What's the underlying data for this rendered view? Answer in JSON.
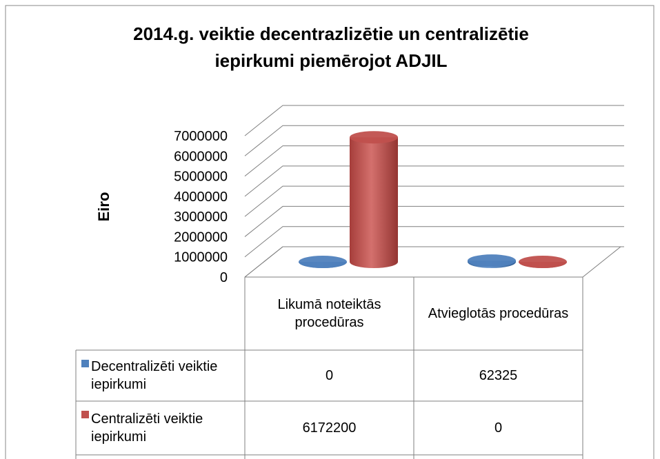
{
  "chart_data": {
    "type": "bar3d",
    "title": "2014.g. veiktie decentrazlizētie un centralizētie iepirkumi piemērojot ADJIL",
    "y_label": "Eiro",
    "categories": [
      "Likumā noteiktās procedūras",
      "Atvieglotās procedūras"
    ],
    "series": [
      {
        "name": "Decentralizēti veiktie iepirkumi",
        "color": "#4f81bd",
        "values": [
          0,
          62325
        ]
      },
      {
        "name": "Centralizēti veiktie iepirkumi",
        "color": "#c0504d",
        "values": [
          6172200,
          0
        ]
      }
    ],
    "ylim": [
      0,
      7000000
    ],
    "yticks": [
      0,
      1000000,
      2000000,
      3000000,
      4000000,
      5000000,
      6000000,
      7000000
    ],
    "grid": true,
    "legend": "table"
  }
}
